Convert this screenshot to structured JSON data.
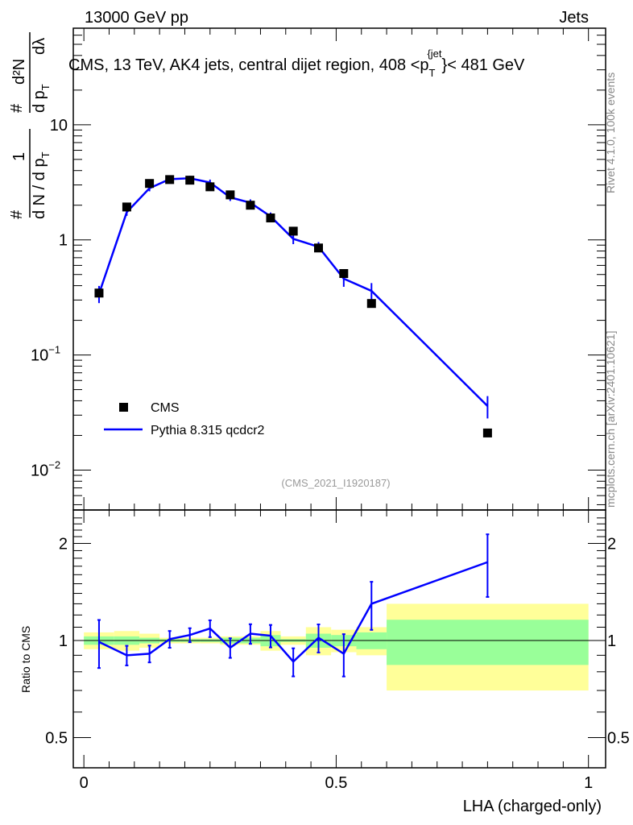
{
  "header": {
    "left": "13000 GeV pp",
    "right": "Jets"
  },
  "side_labels": {
    "rivet": "Rivet 4.1.0,  100k events",
    "mcplots": "mcplots.cern.ch [arXiv:2401.10621]"
  },
  "chart_data": [
    {
      "type": "scatter",
      "title": "CMS, 13 TeV, AK4 jets, central dijet region, 408 <p_T^{jet}< 481 GeV",
      "title_main": "CMS, 13 TeV, AK4 jets, central dijet region, 408 <p",
      "title_sub": "T",
      "title_sup": "{jet",
      "title_end": "}< 481 GeV",
      "ylabel": "# 1/(dN/dp_T) # d²N/(dp_T dλ)",
      "ylabel_parts": {
        "hash": "#",
        "one": "1",
        "den": "d N / d p",
        "den_sub": "T",
        "num": "d²N",
        "num_den": "d p",
        "num_den_sub": "T",
        "lambda": "dλ"
      },
      "yscale": "log",
      "ylim": [
        0.0045,
        69
      ],
      "xlim": [
        -0.021,
        1.034
      ],
      "yticks": [
        {
          "v": 10,
          "label": "10"
        },
        {
          "v": 1,
          "label": "1"
        },
        {
          "v": 0.1,
          "label": "10",
          "exp": "−1"
        },
        {
          "v": 0.01,
          "label": "10",
          "exp": "−2"
        }
      ],
      "annotation": "(CMS_2021_I1920187)",
      "legend": {
        "placement": "bottom-left",
        "entries": [
          "CMS",
          "Pythia 8.315 qcdcr2"
        ]
      },
      "bin_edges": [
        0,
        0.06,
        0.11,
        0.15,
        0.19,
        0.23,
        0.27,
        0.31,
        0.35,
        0.39,
        0.44,
        0.49,
        0.54,
        0.6,
        1.0
      ],
      "x": [
        0.03,
        0.085,
        0.13,
        0.17,
        0.21,
        0.25,
        0.29,
        0.33,
        0.37,
        0.415,
        0.465,
        0.515,
        0.57,
        0.8
      ],
      "series": [
        {
          "name": "CMS",
          "color": "#000000",
          "values": [
            0.345,
            1.93,
            3.09,
            3.34,
            3.3,
            2.89,
            2.46,
            2.0,
            1.55,
            1.19,
            0.85,
            0.51,
            0.28,
            0.021
          ]
        },
        {
          "name": "Pythia 8.315 qcdcr2",
          "color": "#0000ff",
          "values": [
            0.34,
            1.74,
            2.81,
            3.37,
            3.43,
            3.15,
            2.34,
            2.1,
            1.6,
            1.02,
            0.87,
            0.46,
            0.36,
            0.036
          ],
          "rel_err": [
            0.17,
            0.07,
            0.06,
            0.06,
            0.05,
            0.06,
            0.07,
            0.07,
            0.08,
            0.1,
            0.1,
            0.15,
            0.17,
            0.22
          ]
        }
      ]
    },
    {
      "type": "line",
      "ylabel": "Ratio to CMS",
      "xlabel": "LHA (charged-only)",
      "yscale": "log",
      "ylim": [
        0.403,
        2.54
      ],
      "yticks": [
        {
          "v": 2,
          "label": "2"
        },
        {
          "v": 1,
          "label": "1"
        },
        {
          "v": 0.5,
          "label": "0.5"
        }
      ],
      "xticks": [
        {
          "v": 0,
          "label": "0"
        },
        {
          "v": 0.5,
          "label": "0.5"
        },
        {
          "v": 1,
          "label": "1"
        }
      ],
      "ratio": [
        0.99,
        0.9,
        0.91,
        1.01,
        1.04,
        1.09,
        0.95,
        1.05,
        1.035,
        0.86,
        1.02,
        0.91,
        1.3,
        1.75
      ],
      "band_green": [
        0.03,
        0.03,
        0.02,
        0.01,
        0.01,
        0.01,
        0.02,
        0.02,
        0.04,
        0.01,
        0.05,
        0.04,
        0.06,
        0.16
      ],
      "band_yellow": [
        0.06,
        0.07,
        0.05,
        0.02,
        0.02,
        0.02,
        0.03,
        0.03,
        0.07,
        0.03,
        0.1,
        0.08,
        0.1,
        0.3
      ],
      "colors": {
        "green": "#99ff99",
        "yellow": "#ffff99",
        "mc": "#0000ff"
      }
    }
  ]
}
